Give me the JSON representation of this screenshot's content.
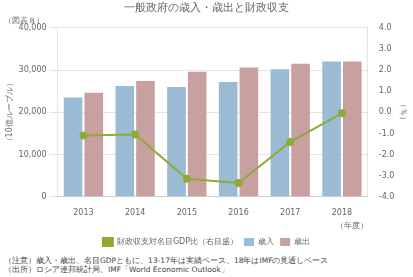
{
  "chart_data": {
    "type": "bar",
    "title": "一般政府の歳入・歳出と財政収支",
    "subtitle": "（図表８）",
    "xlabel": "（年度）",
    "ylabel": "（10億ルーブル）",
    "y2label": "（％）",
    "annotations": [
      "（注意）歳入・歳出、名目GDPともに、13-17年は実績ベース、18年はIMFの見通しベース",
      "（出所）ロシア連邦統計局、IMF「World Economic Outlook」"
    ],
    "categories": [
      "2013",
      "2014",
      "2015",
      "2016",
      "2017",
      "2018"
    ],
    "series": [
      {
        "name": "歳入",
        "type": "bar",
        "color": "#9bbad4",
        "values": [
          23500,
          26200,
          26000,
          27200,
          30200,
          32000
        ]
      },
      {
        "name": "歳出",
        "type": "bar",
        "color": "#c9a0a0",
        "values": [
          24600,
          27400,
          29600,
          30600,
          31500,
          32000
        ]
      },
      {
        "name": "財政収支対名目GDP比（右目盛）",
        "type": "line",
        "axis": "y2",
        "marker": "o",
        "color": "#8faa37",
        "values": [
          -1.1,
          -1.05,
          -3.15,
          -3.35,
          -1.4,
          -0.05
        ]
      }
    ],
    "ylim": [
      0,
      40000
    ],
    "yticks": [
      0,
      {
        "value": 10000,
        "label": "10,000"
      },
      {
        "value": 20000,
        "label": "20,000"
      },
      {
        "value": 30000,
        "label": "30,000"
      },
      {
        "value": 40000,
        "label": "40,000"
      }
    ],
    "y2lim": [
      -4.0,
      4.0
    ],
    "y2ticks": [
      {
        "value": -4.0,
        "label": "-4.0"
      },
      {
        "value": -3.0,
        "label": "-3.0"
      },
      {
        "value": -2.0,
        "label": "-2.0"
      },
      {
        "value": -1.0,
        "label": "-1.0"
      },
      {
        "value": 0.0,
        "label": "0.0"
      },
      {
        "value": 1.0,
        "label": "1.0"
      },
      {
        "value": 2.0,
        "label": "2.0"
      },
      {
        "value": 3.0,
        "label": "3.0"
      },
      {
        "value": 4.0,
        "label": "4.0"
      }
    ],
    "grid": true,
    "legend": "bottom"
  }
}
